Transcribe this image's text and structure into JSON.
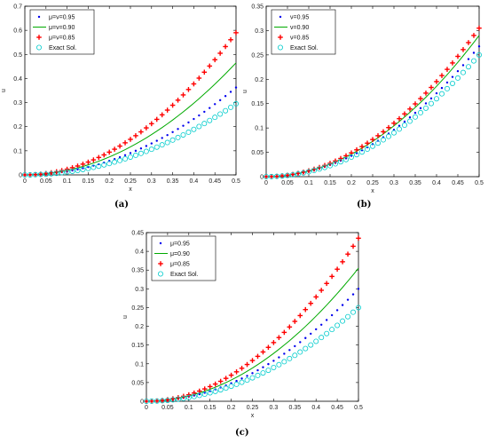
{
  "chart_data": [
    {
      "type": "line",
      "caption": "(a)",
      "xlabel": "x",
      "ylabel": "u",
      "xlim": [
        0,
        0.5
      ],
      "ylim": [
        0,
        0.7
      ],
      "xticks": [
        "0",
        "0.05",
        "0.1",
        "0.15",
        "0.2",
        "0.25",
        "0.3",
        "0.35",
        "0.4",
        "0.45",
        "0.5"
      ],
      "yticks": [
        "0",
        "0.1",
        "0.2",
        "0.3",
        "0.4",
        "0.5",
        "0.6",
        "0.7"
      ],
      "legend_position": "top-left",
      "series": [
        {
          "name": "μ=ν=0.95",
          "marker": "dot",
          "color": "#0000ee",
          "coef": 1.45,
          "power": 2
        },
        {
          "name": "μ=ν=0.90",
          "marker": "line",
          "color": "#00aa00",
          "coef": 1.86,
          "power": 2
        },
        {
          "name": "μ=ν=0.85",
          "marker": "plus",
          "color": "#ff0000",
          "coef": 2.36,
          "power": 2
        },
        {
          "name": "Exact Sol.",
          "marker": "circle",
          "color": "#00cccc",
          "coef": 1.18,
          "power": 2
        }
      ]
    },
    {
      "type": "line",
      "caption": "(b)",
      "xlabel": "x",
      "ylabel": "u",
      "xlim": [
        0,
        0.5
      ],
      "ylim": [
        0,
        0.35
      ],
      "xticks": [
        "0",
        "0.05",
        "0.1",
        "0.15",
        "0.2",
        "0.25",
        "0.3",
        "0.35",
        "0.4",
        "0.45",
        "0.5"
      ],
      "yticks": [
        "0",
        "0.05",
        "0.1",
        "0.15",
        "0.2",
        "0.25",
        "0.3",
        "0.35"
      ],
      "legend_position": "top-left",
      "series": [
        {
          "name": "ν=0.95",
          "marker": "dot",
          "color": "#0000ee",
          "coef": 1.07,
          "power": 2
        },
        {
          "name": "ν=0.90",
          "marker": "line",
          "color": "#00aa00",
          "coef": 1.16,
          "power": 2
        },
        {
          "name": "ν=0.85",
          "marker": "plus",
          "color": "#ff0000",
          "coef": 1.22,
          "power": 2
        },
        {
          "name": "Exact Sol.",
          "marker": "circle",
          "color": "#00cccc",
          "coef": 1.0,
          "power": 2
        }
      ]
    },
    {
      "type": "line",
      "caption": "(c)",
      "xlabel": "x",
      "ylabel": "u",
      "xlim": [
        0,
        0.5
      ],
      "ylim": [
        0,
        0.45
      ],
      "xticks": [
        "0",
        "0.05",
        "0.1",
        "0.15",
        "0.2",
        "0.25",
        "0.3",
        "0.35",
        "0.4",
        "0.45",
        "0.5"
      ],
      "yticks": [
        "0",
        "0.05",
        "0.1",
        "0.15",
        "0.2",
        "0.25",
        "0.3",
        "0.35",
        "0.4",
        "0.45"
      ],
      "legend_position": "top-left",
      "series": [
        {
          "name": "μ=0.95",
          "marker": "dot",
          "color": "#0000ee",
          "coef": 1.2,
          "power": 2
        },
        {
          "name": "μ=0.90",
          "marker": "line",
          "color": "#00aa00",
          "coef": 1.42,
          "power": 2
        },
        {
          "name": "μ=0.85",
          "marker": "plus",
          "color": "#ff0000",
          "coef": 1.74,
          "power": 2
        },
        {
          "name": "Exact Sol.",
          "marker": "circle",
          "color": "#00cccc",
          "coef": 1.0,
          "power": 2
        }
      ]
    }
  ]
}
